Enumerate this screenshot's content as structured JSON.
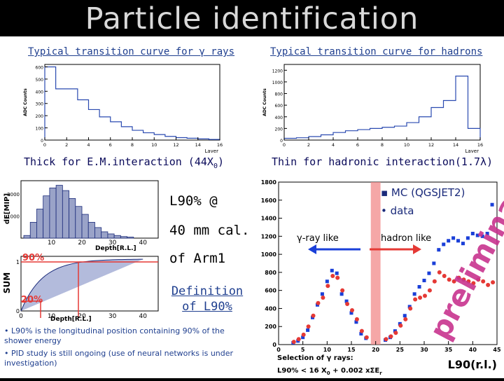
{
  "title": "Particle identification",
  "gamma_panel": {
    "caption": "Typical transition curve for γ rays",
    "footer": "Thick for E.M.interaction (44X",
    "footer_sub": "0",
    "footer_end": ")",
    "y_title": "ADC Counts",
    "x_title": "Layer",
    "y_ticks": [
      "0",
      "100",
      "200",
      "300",
      "400",
      "500",
      "600"
    ],
    "x_ticks": [
      "0",
      "2",
      "4",
      "6",
      "8",
      "10",
      "12",
      "14",
      "16"
    ]
  },
  "hadron_panel": {
    "caption": "Typical transition curve for hadrons",
    "footer": "Thin for hadronic interaction(1.7λ)",
    "y_title": "ADC Counts",
    "x_title": "Layer",
    "y_ticks": [
      "0",
      "200",
      "400",
      "600",
      "800",
      "1000",
      "1200"
    ],
    "x_ticks": [
      "0",
      "2",
      "4",
      "6",
      "8",
      "10",
      "12",
      "14",
      "16"
    ]
  },
  "depth_panel": {
    "y_title_top": "dE[MIP]",
    "y_title_bottom": "SUM",
    "top_ticks": [
      "1000",
      "2000"
    ],
    "x_title": "Depth[R.L.]",
    "x_ticks": [
      "10",
      "20",
      "30",
      "40"
    ],
    "bottom_ticks": [
      "0",
      "1"
    ],
    "bottom_x_ticks": [
      "0",
      "10",
      "20",
      "30",
      "40"
    ],
    "label_90": "90%",
    "label_20": "20%"
  },
  "middle": {
    "line1": "L90% @",
    "line2": "40 mm cal.",
    "line3": "of Arm1",
    "definition_1": "Definition",
    "definition_2": "of L90%"
  },
  "notes": [
    "• L90% is the longitudinal position containing 90% of the shower energy",
    "• PID study is still ongoing (use of neural networks is under investigation)"
  ],
  "colors": {
    "accent_red": "#e53935",
    "accent_blue": "#1a3fd8",
    "caption_blue": "#1f3f8f",
    "magenta": "#c8348f"
  },
  "chart_data": [
    {
      "type": "bar",
      "title": "Typical transition curve for γ rays",
      "xlabel": "Layer",
      "ylabel": "ADC Counts",
      "ylim": [
        0,
        620
      ],
      "xlim": [
        0,
        16
      ],
      "categories": [
        "0",
        "1",
        "2",
        "3",
        "4",
        "5",
        "6",
        "7",
        "8",
        "9",
        "10",
        "11",
        "12",
        "13",
        "14",
        "15"
      ],
      "values": [
        600,
        420,
        420,
        330,
        250,
        190,
        150,
        110,
        80,
        60,
        45,
        30,
        20,
        15,
        10,
        5
      ]
    },
    {
      "type": "bar",
      "title": "Typical transition curve for hadrons",
      "xlabel": "Layer",
      "ylabel": "ADC Counts",
      "ylim": [
        0,
        1300
      ],
      "xlim": [
        0,
        16
      ],
      "categories": [
        "0",
        "1",
        "2",
        "3",
        "4",
        "5",
        "6",
        "7",
        "8",
        "9",
        "10",
        "11",
        "12",
        "13",
        "14",
        "15"
      ],
      "values": [
        30,
        40,
        60,
        90,
        130,
        160,
        180,
        200,
        220,
        240,
        300,
        400,
        560,
        680,
        1100,
        200
      ]
    },
    {
      "type": "scatter",
      "xlabel": "L90(r.l.)",
      "ylabel": "",
      "xlim": [
        0,
        45
      ],
      "ylim": [
        0,
        1800
      ],
      "x_ticks": [
        "0",
        "5",
        "10",
        "15",
        "20",
        "25",
        "30",
        "35",
        "40",
        "45"
      ],
      "y_ticks": [
        "0",
        "200",
        "400",
        "600",
        "800",
        "1000",
        "1200",
        "1400",
        "1600",
        "1800"
      ],
      "legend": [
        "MC (QGSJET2)",
        "data"
      ],
      "annotation_gamma": "γ-ray like",
      "annotation_hadron": "hadron like",
      "watermark": "preliminary",
      "selection_1": "Selection of γ rays:",
      "selection_2": "L90% < 16 X",
      "selection_2_sub": "0",
      "selection_3": " + 0.002 xΣE",
      "selection_3_sub": "r",
      "cut_band": [
        19,
        21
      ],
      "series": [
        {
          "name": "MC (QGSJET2)",
          "color": "#1a3fd8",
          "x": [
            3,
            4,
            5,
            6,
            7,
            8,
            9,
            10,
            11,
            12,
            13,
            14,
            15,
            16,
            17,
            18,
            22,
            23,
            24,
            25,
            26,
            27,
            28,
            29,
            30,
            31,
            32,
            33,
            34,
            35,
            36,
            37,
            38,
            39,
            40,
            41,
            42,
            43,
            44
          ],
          "y": [
            20,
            40,
            80,
            160,
            300,
            440,
            560,
            700,
            820,
            790,
            560,
            480,
            350,
            250,
            120,
            70,
            50,
            80,
            150,
            230,
            320,
            420,
            560,
            640,
            710,
            790,
            900,
            1050,
            1110,
            1150,
            1180,
            1150,
            1120,
            1180,
            1230,
            1210,
            1200,
            1230,
            1550
          ]
        },
        {
          "name": "data",
          "color": "#e53935",
          "x": [
            3,
            4,
            5,
            6,
            7,
            8,
            9,
            10,
            11,
            12,
            13,
            14,
            15,
            16,
            17,
            18,
            22,
            23,
            24,
            25,
            26,
            27,
            28,
            29,
            30,
            31,
            32,
            33,
            34,
            35,
            36,
            37,
            38,
            39,
            40,
            41,
            42,
            43,
            44
          ],
          "y": [
            30,
            60,
            110,
            200,
            320,
            460,
            520,
            650,
            760,
            740,
            600,
            450,
            380,
            280,
            150,
            80,
            60,
            90,
            130,
            210,
            280,
            400,
            500,
            520,
            540,
            600,
            700,
            800,
            760,
            720,
            700,
            740,
            720,
            700,
            680,
            720,
            700,
            660,
            690
          ]
        }
      ]
    }
  ]
}
